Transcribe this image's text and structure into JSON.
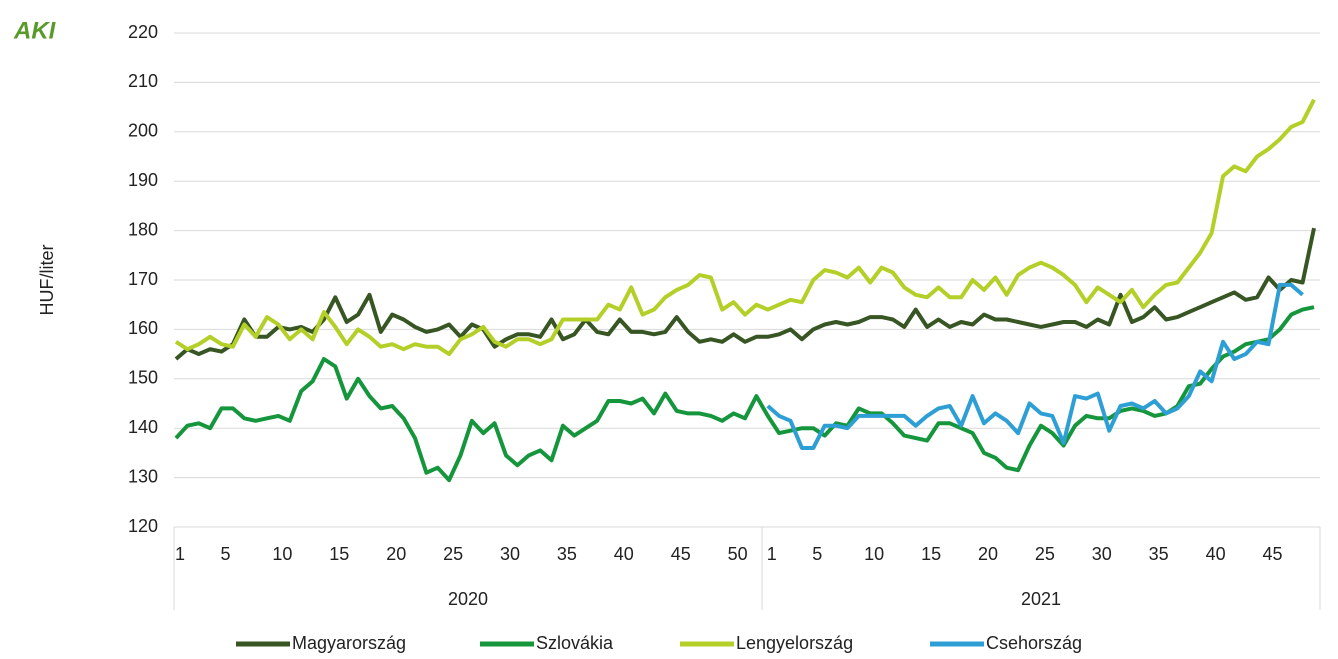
{
  "chart_data": {
    "type": "line",
    "logo": "AKI",
    "y_label": "HUF/liter",
    "ylim": [
      120,
      220
    ],
    "yticks": [
      120,
      130,
      140,
      150,
      160,
      170,
      180,
      190,
      200,
      210,
      220
    ],
    "grid": true,
    "groups": [
      "2020",
      "2021"
    ],
    "legend": "bottom",
    "categories": [
      "1",
      null,
      null,
      null,
      "5",
      null,
      null,
      null,
      null,
      "10",
      null,
      null,
      null,
      null,
      "15",
      null,
      null,
      null,
      null,
      "20",
      null,
      null,
      null,
      null,
      "25",
      null,
      null,
      null,
      null,
      "30",
      null,
      null,
      null,
      null,
      "35",
      null,
      null,
      null,
      null,
      "40",
      null,
      null,
      null,
      null,
      "45",
      null,
      null,
      null,
      null,
      "50",
      null,
      null,
      "1",
      null,
      null,
      null,
      "5",
      null,
      null,
      null,
      null,
      "10",
      null,
      null,
      null,
      null,
      "15",
      null,
      null,
      null,
      null,
      "20",
      null,
      null,
      null,
      null,
      "25",
      null,
      null,
      null,
      null,
      "30",
      null,
      null,
      null,
      null,
      "35",
      null,
      null,
      null,
      null,
      "40",
      null,
      null,
      null,
      null,
      "45",
      null,
      null,
      null,
      null
    ],
    "series": [
      {
        "name": "Magyarország",
        "color": "#375623",
        "values": [
          154,
          156,
          155,
          156,
          155.5,
          157,
          162,
          158.5,
          158.5,
          160.5,
          160,
          160.5,
          159.5,
          162,
          166.5,
          161.5,
          163,
          167,
          159.5,
          163,
          162,
          160.5,
          159.5,
          160,
          161,
          158.5,
          161,
          160,
          156.5,
          158,
          159,
          159,
          158.5,
          162,
          158,
          159,
          162,
          159.5,
          159,
          162,
          159.5,
          159.5,
          159,
          159.5,
          162.5,
          159.5,
          157.5,
          158,
          157.5,
          159,
          157.5,
          158.5,
          158.5,
          159,
          160,
          158,
          160,
          161,
          161.5,
          161,
          161.5,
          162.5,
          162.5,
          162,
          160.5,
          164,
          160.5,
          162,
          160.5,
          161.5,
          161,
          163,
          162,
          162,
          161.5,
          161,
          160.5,
          161,
          161.5,
          161.5,
          160.5,
          162,
          161,
          167,
          161.5,
          162.5,
          164.5,
          162,
          162.5,
          163.5,
          164.5,
          165.5,
          166.5,
          167.5,
          166,
          166.5,
          170.5,
          168,
          170,
          169.5,
          180.5
        ]
      },
      {
        "name": "Szlovákia",
        "color": "#15963c",
        "values": [
          138,
          140.5,
          141,
          140,
          144,
          144,
          142,
          141.5,
          142,
          142.5,
          141.5,
          147.5,
          149.5,
          154,
          152.5,
          146,
          150,
          146.5,
          144,
          144.5,
          142,
          138,
          131,
          132,
          129.5,
          134.5,
          141.5,
          139,
          141,
          134.5,
          132.5,
          134.5,
          135.5,
          133.5,
          140.5,
          138.5,
          140,
          141.5,
          145.5,
          145.5,
          145,
          146,
          143,
          147,
          143.5,
          143,
          143,
          142.5,
          141.5,
          143,
          142,
          146.5,
          142.5,
          139,
          139.5,
          140,
          140,
          138.5,
          141,
          140.5,
          144,
          143,
          143,
          141,
          138.5,
          138,
          137.5,
          141,
          141,
          140,
          139,
          135,
          134,
          132,
          131.5,
          136.5,
          140.5,
          139,
          136.5,
          140.5,
          142.5,
          142,
          142,
          143.5,
          144,
          143.5,
          142.5,
          143,
          144.5,
          148.5,
          149,
          152,
          154.5,
          155.5,
          157,
          157.5,
          158,
          160,
          163,
          164,
          164.5
        ]
      },
      {
        "name": "Lengyelország",
        "color": "#b5cf29",
        "values": [
          157.5,
          156,
          157,
          158.5,
          157,
          156.5,
          161,
          158.5,
          162.5,
          161,
          158,
          160,
          158,
          163.5,
          160.5,
          157,
          160,
          158.5,
          156.5,
          157,
          156,
          157,
          156.5,
          156.5,
          155,
          158,
          159,
          160.5,
          157.5,
          156.5,
          158,
          158,
          157,
          158,
          162,
          162,
          162,
          162,
          165,
          164,
          168.5,
          163,
          164,
          166.5,
          168,
          169,
          171,
          170.5,
          164,
          165.5,
          163,
          165,
          164,
          165,
          166,
          165.5,
          170,
          172,
          171.5,
          170.5,
          172.5,
          169.5,
          172.5,
          171.5,
          168.5,
          167,
          166.5,
          168.5,
          166.5,
          166.5,
          170,
          168,
          170.5,
          167,
          171,
          172.5,
          173.5,
          172.5,
          171,
          169,
          165.5,
          168.5,
          167,
          165.5,
          168,
          164.5,
          167,
          169,
          169.5,
          172.5,
          175.5,
          179.5,
          191,
          193,
          192,
          195,
          196.5,
          198.5,
          201,
          202,
          206.5
        ]
      },
      {
        "name": "Csehország",
        "color": "#2e9fd4",
        "values": [
          null,
          null,
          null,
          null,
          null,
          null,
          null,
          null,
          null,
          null,
          null,
          null,
          null,
          null,
          null,
          null,
          null,
          null,
          null,
          null,
          null,
          null,
          null,
          null,
          null,
          null,
          null,
          null,
          null,
          null,
          null,
          null,
          null,
          null,
          null,
          null,
          null,
          null,
          null,
          null,
          null,
          null,
          null,
          null,
          null,
          null,
          null,
          null,
          null,
          null,
          null,
          null,
          144.5,
          142.5,
          141.5,
          136,
          136,
          140.5,
          140.5,
          140,
          142.5,
          142.5,
          142.5,
          142.5,
          142.5,
          140.5,
          142.5,
          144,
          144.5,
          140.5,
          146.5,
          141,
          143,
          141.5,
          139,
          145,
          143,
          142.5,
          137,
          146.5,
          146,
          147,
          139.5,
          144.5,
          145,
          144,
          145.5,
          143,
          144,
          146.5,
          151.5,
          149.5,
          157.5,
          154,
          155,
          157.5,
          157,
          169,
          169,
          167,
          null
        ]
      }
    ]
  }
}
